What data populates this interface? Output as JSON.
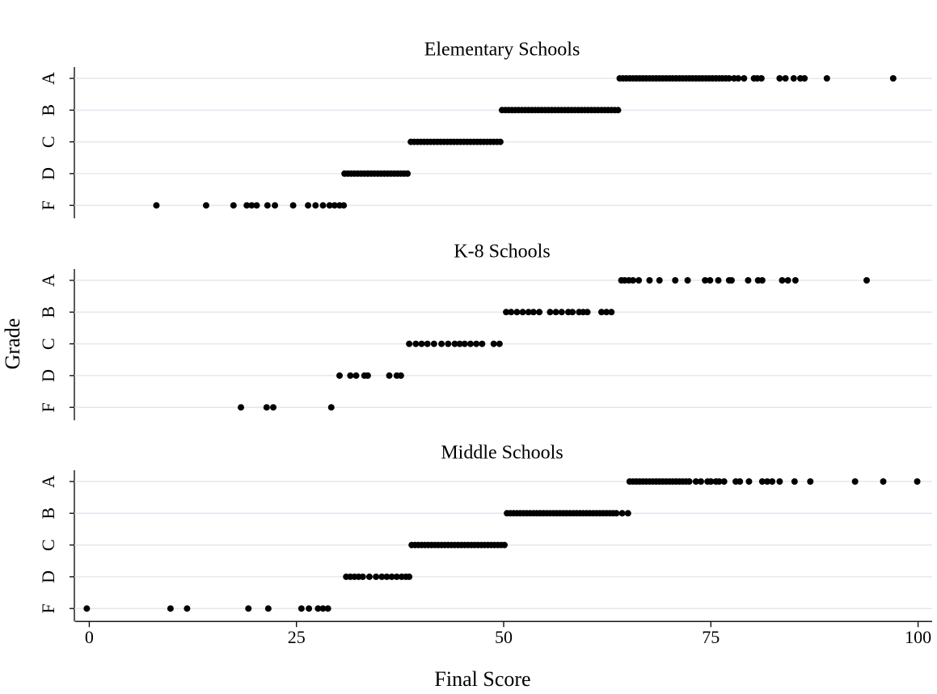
{
  "chart_data": [
    {
      "type": "strip",
      "title": "Elementary Schools",
      "color": "#000000",
      "grid": true,
      "grid_color": "#dfe4ee",
      "groups": [
        {
          "name": "A",
          "values": [
            64.0,
            64.4,
            64.8,
            65.2,
            65.6,
            66.0,
            66.4,
            66.8,
            67.2,
            67.6,
            68.0,
            68.4,
            68.8,
            69.2,
            69.6,
            70.0,
            70.4,
            70.8,
            71.2,
            71.6,
            72.0,
            72.4,
            72.8,
            73.2,
            73.6,
            74.0,
            74.4,
            74.8,
            75.2,
            75.6,
            76.0,
            76.4,
            76.8,
            77.2,
            77.8,
            78.3,
            79.0,
            80.2,
            80.6,
            81.1,
            83.3,
            84.0,
            85.0,
            85.8,
            86.3,
            89.0,
            97.0
          ]
        },
        {
          "name": "B",
          "values": [
            49.8,
            50.2,
            50.6,
            51.0,
            51.4,
            51.8,
            52.2,
            52.6,
            53.0,
            53.4,
            53.8,
            54.2,
            54.6,
            55.0,
            55.4,
            55.8,
            56.2,
            56.6,
            57.0,
            57.4,
            57.8,
            58.2,
            58.6,
            59.0,
            59.4,
            59.8,
            60.2,
            60.6,
            61.0,
            61.4,
            61.8,
            62.2,
            62.6,
            63.0,
            63.4,
            63.8
          ]
        },
        {
          "name": "C",
          "values": [
            38.8,
            39.2,
            39.6,
            40.0,
            40.4,
            40.8,
            41.2,
            41.6,
            42.0,
            42.4,
            42.8,
            43.2,
            43.6,
            44.0,
            44.4,
            44.8,
            45.2,
            45.6,
            46.0,
            46.4,
            46.8,
            47.2,
            47.6,
            48.0,
            48.4,
            48.8,
            49.2,
            49.6
          ]
        },
        {
          "name": "D",
          "values": [
            30.8,
            31.2,
            31.6,
            32.0,
            32.4,
            32.8,
            33.2,
            33.6,
            34.0,
            34.4,
            34.8,
            35.2,
            35.6,
            36.0,
            36.4,
            36.8,
            37.2,
            37.6,
            38.0,
            38.4
          ]
        },
        {
          "name": "F",
          "values": [
            8.1,
            14.1,
            17.4,
            19.0,
            19.6,
            20.2,
            21.5,
            22.4,
            24.6,
            26.4,
            27.3,
            28.2,
            29.0,
            29.6,
            30.2,
            30.7
          ]
        }
      ]
    },
    {
      "type": "strip",
      "title": "K-8 Schools",
      "ylabel": "Grade",
      "color": "#000000",
      "grid": true,
      "grid_color": "#dfe4ee",
      "groups": [
        {
          "name": "A",
          "values": [
            64.2,
            64.6,
            65.1,
            65.6,
            66.3,
            67.6,
            68.8,
            70.7,
            72.2,
            74.3,
            74.9,
            75.9,
            77.2,
            77.5,
            79.5,
            80.7,
            81.2,
            83.6,
            84.3,
            85.2,
            93.8
          ]
        },
        {
          "name": "B",
          "values": [
            50.3,
            50.9,
            51.6,
            52.3,
            53.0,
            53.6,
            54.3,
            55.6,
            56.3,
            57.0,
            57.8,
            58.3,
            59.1,
            59.6,
            60.1,
            61.8,
            62.4,
            63.0
          ]
        },
        {
          "name": "C",
          "values": [
            38.6,
            39.4,
            40.1,
            40.8,
            41.6,
            42.5,
            43.3,
            44.1,
            44.7,
            45.3,
            46.0,
            46.7,
            47.4,
            48.8,
            49.5
          ]
        },
        {
          "name": "D",
          "values": [
            30.2,
            31.5,
            32.2,
            33.2,
            33.6,
            36.2,
            37.1,
            37.6
          ]
        },
        {
          "name": "F",
          "values": [
            18.3,
            21.4,
            22.2,
            29.2
          ]
        }
      ]
    },
    {
      "type": "strip",
      "title": "Middle Schools",
      "xlabel": "Final Score",
      "xlim": [
        -1.7,
        101.7
      ],
      "xticks": [
        0,
        25,
        50,
        75,
        100
      ],
      "color": "#000000",
      "grid": true,
      "grid_color": "#dfe4ee",
      "groups": [
        {
          "name": "A",
          "values": [
            65.2,
            65.6,
            66.0,
            66.4,
            66.8,
            67.2,
            67.6,
            68.0,
            68.4,
            68.8,
            69.2,
            69.6,
            70.0,
            70.4,
            70.8,
            71.2,
            71.6,
            72.0,
            72.4,
            73.2,
            73.8,
            74.6,
            75.0,
            75.6,
            76.0,
            76.6,
            78.0,
            78.5,
            79.6,
            81.2,
            81.8,
            82.4,
            83.3,
            85.1,
            87.0,
            92.4,
            95.8,
            99.9
          ]
        },
        {
          "name": "B",
          "values": [
            50.4,
            50.8,
            51.2,
            51.6,
            52.0,
            52.4,
            52.8,
            53.2,
            53.6,
            54.0,
            54.4,
            54.8,
            55.2,
            55.6,
            56.0,
            56.4,
            56.8,
            57.2,
            57.6,
            58.0,
            58.4,
            58.8,
            59.2,
            59.6,
            60.0,
            60.4,
            60.8,
            61.2,
            61.6,
            62.0,
            62.4,
            62.8,
            63.2,
            63.6,
            64.3,
            65.0
          ]
        },
        {
          "name": "C",
          "values": [
            38.9,
            39.3,
            39.7,
            40.1,
            40.5,
            40.9,
            41.3,
            41.7,
            42.1,
            42.5,
            42.9,
            43.3,
            43.7,
            44.1,
            44.5,
            44.9,
            45.3,
            45.7,
            46.1,
            46.5,
            46.9,
            47.3,
            47.7,
            48.1,
            48.5,
            48.9,
            49.3,
            49.7,
            50.1
          ]
        },
        {
          "name": "D",
          "values": [
            31.0,
            31.5,
            32.0,
            32.5,
            33.0,
            33.8,
            34.6,
            35.3,
            35.9,
            36.5,
            37.1,
            37.7,
            38.2,
            38.6
          ]
        },
        {
          "name": "F",
          "values": [
            -0.3,
            9.8,
            11.8,
            19.2,
            21.6,
            25.6,
            26.5,
            27.6,
            28.2,
            28.8
          ]
        }
      ]
    }
  ]
}
